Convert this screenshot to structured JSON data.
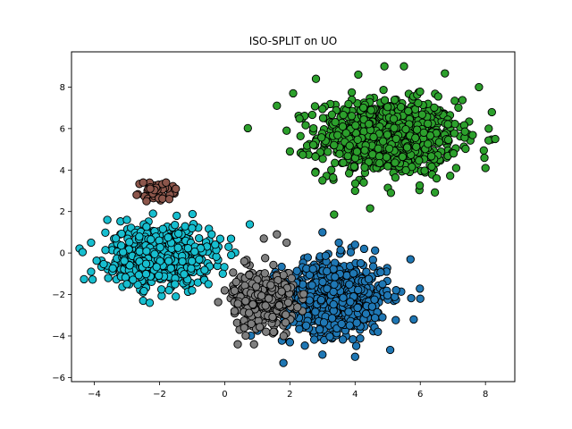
{
  "chart_data": {
    "type": "scatter",
    "title": "ISO-SPLIT on UO",
    "xlabel": "",
    "ylabel": "",
    "xlim": [
      -4.7,
      8.9
    ],
    "ylim": [
      -6.2,
      9.7
    ],
    "xticks": [
      -4,
      -2,
      0,
      2,
      4,
      6,
      8
    ],
    "yticks": [
      -6,
      -4,
      -2,
      0,
      2,
      4,
      6,
      8
    ],
    "grid": false,
    "legend": "none",
    "point_edge_color": "#000000",
    "series": [
      {
        "color": "#2ca02c",
        "center": [
          5.0,
          5.6
        ],
        "spread": [
          1.25,
          1.05
        ],
        "count": 900,
        "sample_points": [
          [
            4.9,
            9.0
          ],
          [
            5.5,
            9.0
          ],
          [
            4.1,
            8.6
          ],
          [
            2.8,
            8.4
          ],
          [
            7.8,
            8.0
          ],
          [
            2.1,
            7.7
          ],
          [
            1.6,
            7.1
          ],
          [
            8.1,
            6.0
          ],
          [
            8.3,
            5.5
          ],
          [
            8.0,
            4.1
          ],
          [
            1.9,
            5.9
          ],
          [
            2.0,
            4.9
          ],
          [
            3.0,
            3.5
          ],
          [
            4.0,
            3.0
          ],
          [
            5.1,
            2.9
          ],
          [
            6.5,
            3.6
          ],
          [
            7.1,
            4.1
          ]
        ]
      },
      {
        "color": "#1f77b4",
        "center": [
          3.4,
          -2.1
        ],
        "spread": [
          0.95,
          1.05
        ],
        "count": 700,
        "sample_points": [
          [
            3.0,
            1.0
          ],
          [
            3.5,
            0.5
          ],
          [
            4.0,
            0.4
          ],
          [
            5.7,
            -0.3
          ],
          [
            6.0,
            -2.2
          ],
          [
            5.8,
            -3.2
          ],
          [
            4.7,
            -3.8
          ],
          [
            4.0,
            -5.0
          ],
          [
            3.0,
            -4.9
          ],
          [
            1.8,
            -5.3
          ],
          [
            2.0,
            -4.3
          ],
          [
            2.5,
            -3.5
          ]
        ]
      },
      {
        "color": "#7f7f7f",
        "center": [
          1.2,
          -2.2
        ],
        "spread": [
          0.55,
          0.8
        ],
        "count": 330,
        "sample_points": [
          [
            1.6,
            0.9
          ],
          [
            1.9,
            0.5
          ],
          [
            1.2,
            0.7
          ],
          [
            0.6,
            -0.4
          ],
          [
            0.0,
            -1.8
          ],
          [
            0.3,
            -2.8
          ],
          [
            0.6,
            -3.6
          ],
          [
            0.9,
            -4.4
          ],
          [
            0.4,
            -4.4
          ],
          [
            1.5,
            -3.8
          ]
        ]
      },
      {
        "color": "#17becf",
        "center": [
          -2.0,
          -0.1
        ],
        "spread": [
          0.9,
          0.8
        ],
        "count": 650,
        "sample_points": [
          [
            -4.1,
            0.5
          ],
          [
            -4.1,
            -0.9
          ],
          [
            -3.6,
            1.6
          ],
          [
            -3.0,
            1.6
          ],
          [
            -2.2,
            1.9
          ],
          [
            -1.0,
            1.2
          ],
          [
            -0.4,
            0.9
          ],
          [
            0.2,
            -0.1
          ],
          [
            -0.5,
            -1.5
          ],
          [
            -1.0,
            -1.8
          ],
          [
            -1.5,
            -2.1
          ],
          [
            -2.5,
            -2.3
          ],
          [
            -2.3,
            -2.4
          ],
          [
            -3.0,
            -1.5
          ]
        ]
      },
      {
        "color": "#8c564b",
        "center": [
          -2.1,
          3.0
        ],
        "spread": [
          0.3,
          0.22
        ],
        "count": 45,
        "sample_points": [
          [
            -2.5,
            3.4
          ],
          [
            -1.8,
            3.4
          ],
          [
            -1.5,
            3.1
          ],
          [
            -2.7,
            2.8
          ],
          [
            -2.4,
            2.5
          ],
          [
            -1.7,
            2.6
          ]
        ]
      }
    ]
  }
}
